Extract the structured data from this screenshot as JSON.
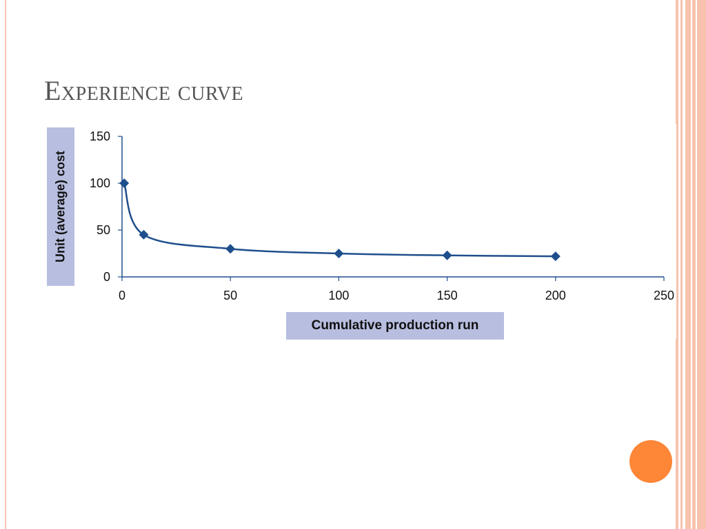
{
  "slide": {
    "title": "Experience curve",
    "colors": {
      "accent_circle": "#fd8637",
      "border_stripes": "#f7c3ad",
      "label_boxes": "#b8bedf",
      "series": "#1f4e8c"
    }
  },
  "chart_data": {
    "type": "line",
    "title": "",
    "xlabel": "Cumulative production run",
    "ylabel": "Unit (average) cost",
    "xlim": [
      0,
      250
    ],
    "ylim": [
      0,
      150
    ],
    "x_ticks": [
      0,
      50,
      100,
      150,
      200,
      250
    ],
    "y_ticks": [
      0,
      50,
      100,
      150
    ],
    "grid": false,
    "legend": "none",
    "series": [
      {
        "markers": "diamond",
        "smooth": true,
        "x": [
          1,
          10,
          50,
          100,
          150,
          200
        ],
        "y": [
          100,
          45,
          30,
          25,
          23,
          22
        ]
      }
    ]
  }
}
